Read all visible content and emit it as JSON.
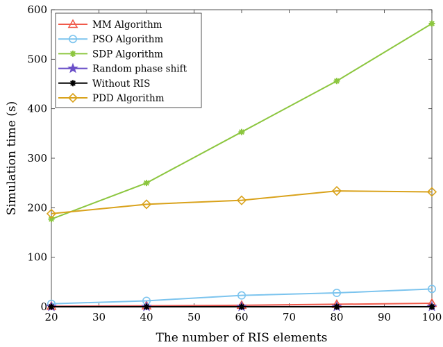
{
  "chart_data": {
    "type": "line",
    "xlabel": "The number of RIS elements",
    "ylabel": "Simulation time (s)",
    "xlim": [
      20,
      100
    ],
    "ylim": [
      0,
      600
    ],
    "xticks": [
      20,
      30,
      40,
      50,
      60,
      70,
      80,
      90,
      100
    ],
    "yticks": [
      0,
      100,
      200,
      300,
      400,
      500,
      600
    ],
    "grid": false,
    "legend_position": "top-left",
    "x": [
      20,
      40,
      60,
      80,
      100
    ],
    "series": [
      {
        "name": "MM Algorithm",
        "color": "#f05a4a",
        "marker": "triangle",
        "values": [
          1,
          2,
          3,
          5,
          7
        ]
      },
      {
        "name": "PSO Algorithm",
        "color": "#7cc4ee",
        "marker": "circle",
        "values": [
          6,
          12,
          23,
          28,
          36
        ]
      },
      {
        "name": "SDP Algorithm",
        "color": "#8cc63f",
        "marker": "asterisk",
        "values": [
          177,
          250,
          353,
          456,
          572
        ]
      },
      {
        "name": "Random phase shift",
        "color": "#6a4fc8",
        "marker": "star",
        "values": [
          0.2,
          0.2,
          0.2,
          0.2,
          0.2
        ]
      },
      {
        "name": "Without RIS",
        "color": "#000000",
        "marker": "asterisk",
        "values": [
          0,
          0,
          0,
          0,
          0
        ]
      },
      {
        "name": "PDD Algorithm",
        "color": "#d9a21b",
        "marker": "diamond",
        "values": [
          188,
          207,
          215,
          234,
          232
        ]
      }
    ]
  }
}
